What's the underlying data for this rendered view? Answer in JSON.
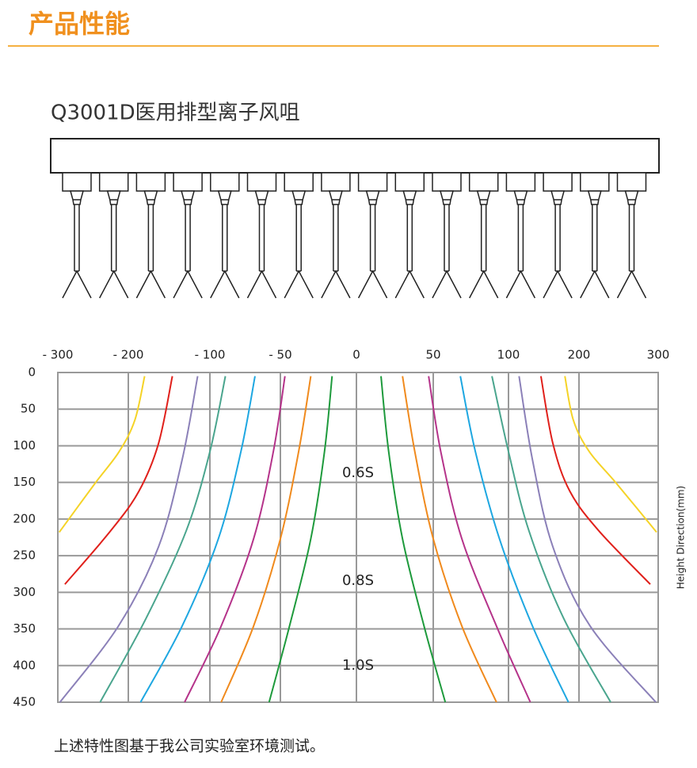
{
  "header": {
    "title": "产品性能"
  },
  "product_name": "Q3001D医用排型离子风咀",
  "chart_data": {
    "type": "line",
    "y_label": "Height Direction(mm)",
    "annotations": [
      "0.6S",
      "0.8S",
      "1.0S"
    ],
    "xlim": [
      -300,
      300
    ],
    "xticks": [
      {
        "value": -300,
        "label": "- 300"
      },
      {
        "value": -200,
        "label": "- 200"
      },
      {
        "value": -100,
        "label": "- 100"
      },
      {
        "value": -50,
        "label": "- 50"
      },
      0,
      50,
      100,
      200,
      300
    ],
    "ylim": [
      0,
      450
    ],
    "y_inverted": true,
    "yticks": [
      0,
      50,
      100,
      150,
      200,
      250,
      300,
      350,
      400,
      450
    ],
    "grid": true,
    "series": [
      {
        "color": "#f5d327",
        "x": [
          -180,
          -192,
          -213,
          -247,
          -298
        ],
        "y": [
          5,
          65,
          108,
          151,
          218
        ]
      },
      {
        "color": "#e0201b",
        "x": [
          -146,
          -163,
          -187,
          -225,
          -290
        ],
        "y": [
          5,
          97,
          162,
          216,
          289
        ]
      },
      {
        "color": "#8b80b8",
        "x": [
          -115,
          -134,
          -163,
          -214,
          -297
        ],
        "y": [
          5,
          119,
          238,
          346,
          450
        ]
      },
      {
        "color": "#4aa58e",
        "x": [
          -89,
          -100,
          -129,
          -178,
          -240
        ],
        "y": [
          5,
          108,
          216,
          335,
          450
        ]
      },
      {
        "color": "#1ea7e1",
        "x": [
          -68,
          -78,
          -94,
          -134,
          -185
        ],
        "y": [
          5,
          108,
          227,
          346,
          450
        ]
      },
      {
        "color": "#b5338a",
        "x": [
          -47,
          -55,
          -69,
          -92,
          -131
        ],
        "y": [
          5,
          108,
          227,
          346,
          450
        ]
      },
      {
        "color": "#f08a1d",
        "x": [
          -30,
          -38,
          -50,
          -69,
          -92
        ],
        "y": [
          5,
          108,
          227,
          346,
          450
        ]
      },
      {
        "color": "#1e9a3c",
        "x": [
          -16,
          -21,
          -30,
          -44,
          -58
        ],
        "y": [
          5,
          108,
          227,
          346,
          450
        ]
      },
      {
        "color": "#1e9a3c",
        "x": [
          16,
          21,
          30,
          44,
          58
        ],
        "y": [
          5,
          108,
          227,
          346,
          450
        ]
      },
      {
        "color": "#f08a1d",
        "x": [
          30,
          38,
          50,
          69,
          92
        ],
        "y": [
          5,
          108,
          227,
          346,
          450
        ]
      },
      {
        "color": "#b5338a",
        "x": [
          47,
          55,
          69,
          92,
          131
        ],
        "y": [
          5,
          108,
          227,
          346,
          450
        ]
      },
      {
        "color": "#1ea7e1",
        "x": [
          68,
          78,
          94,
          134,
          185
        ],
        "y": [
          5,
          108,
          227,
          346,
          450
        ]
      },
      {
        "color": "#4aa58e",
        "x": [
          89,
          100,
          129,
          178,
          240
        ],
        "y": [
          5,
          108,
          216,
          335,
          450
        ]
      },
      {
        "color": "#8b80b8",
        "x": [
          115,
          134,
          163,
          214,
          297
        ],
        "y": [
          5,
          119,
          238,
          346,
          450
        ]
      },
      {
        "color": "#e0201b",
        "x": [
          146,
          163,
          187,
          225,
          290
        ],
        "y": [
          5,
          97,
          162,
          216,
          289
        ]
      },
      {
        "color": "#f5d327",
        "x": [
          180,
          192,
          213,
          247,
          298
        ],
        "y": [
          5,
          65,
          108,
          151,
          218
        ]
      }
    ]
  },
  "footnote": "上述特性图基于我公司实验室环境测试。"
}
